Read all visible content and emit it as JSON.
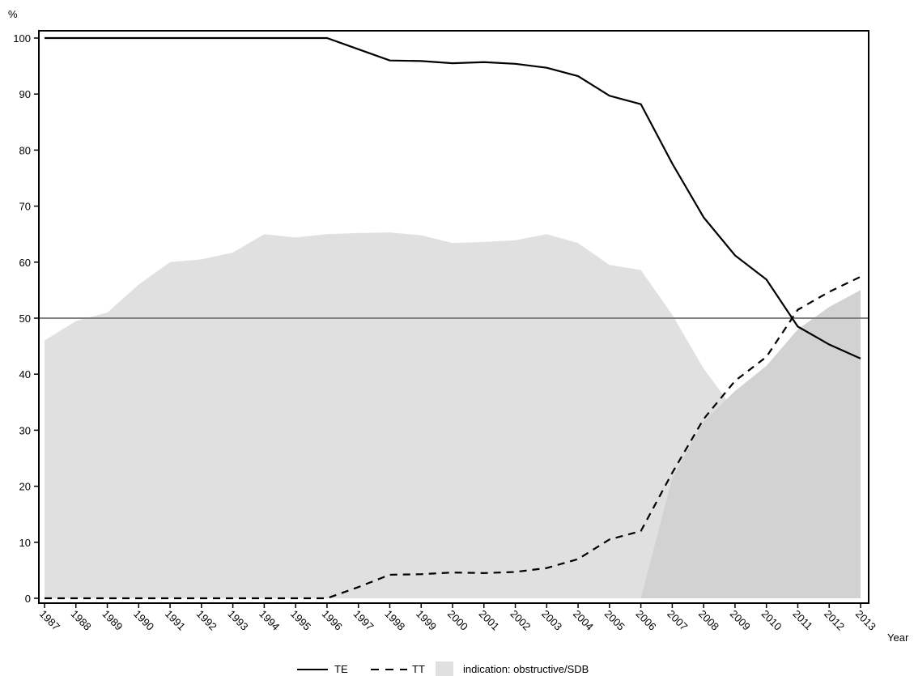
{
  "chart_data": {
    "type": "line",
    "title": "",
    "ylabel": "%",
    "xlabel": "Year",
    "ylim": [
      0,
      100
    ],
    "yticks": [
      0,
      10,
      20,
      30,
      40,
      50,
      60,
      70,
      80,
      90,
      100
    ],
    "x": [
      "1987",
      "1988",
      "1989",
      "1990",
      "1991",
      "1992",
      "1993",
      "1994",
      "1995",
      "1996",
      "1997",
      "1998",
      "1999",
      "2000",
      "2001",
      "2002",
      "2003",
      "2004",
      "2005",
      "2006",
      "2007",
      "2008",
      "2009",
      "2010",
      "2011",
      "2012",
      "2013"
    ],
    "reference_line": 50,
    "grid": false,
    "legend_position": "bottom",
    "series": [
      {
        "name": "TE",
        "style": "solid",
        "color": "#000000",
        "values": [
          100,
          100,
          100,
          100,
          100,
          100,
          100,
          100,
          100,
          100,
          98,
          96,
          95.9,
          95.5,
          95.7,
          95.4,
          94.7,
          93.2,
          89.7,
          88.2,
          77.6,
          68,
          61.2,
          56.9,
          48.5,
          45.3,
          42.8
        ]
      },
      {
        "name": "TT",
        "style": "dashed",
        "color": "#000000",
        "values": [
          0,
          0,
          0,
          0,
          0,
          0,
          0,
          0,
          0,
          0,
          2,
          4.2,
          4.3,
          4.6,
          4.5,
          4.7,
          5.4,
          7,
          10.5,
          12,
          22.4,
          32,
          38.8,
          43.1,
          51.5,
          54.7,
          57.4
        ]
      }
    ],
    "areas": [
      {
        "name": "indication: obstructive/SDB",
        "color": "#e0e0e0",
        "values": [
          46,
          49.5,
          51,
          56,
          60,
          60.5,
          61.7,
          65,
          64.4,
          65,
          65.2,
          65.3,
          64.8,
          63.4,
          63.6,
          63.9,
          65,
          63.4,
          59.5,
          58.6,
          50.6,
          41,
          33.4,
          30.4,
          26.4,
          23.4,
          20.8
        ]
      },
      {
        "name": "",
        "color": "#d2d2d2",
        "values": [
          null,
          null,
          null,
          null,
          null,
          null,
          null,
          null,
          null,
          null,
          0,
          0,
          0,
          0,
          0,
          0,
          0,
          0,
          0,
          0,
          21.5,
          31.5,
          37,
          41.5,
          48,
          52,
          55
        ]
      }
    ]
  }
}
